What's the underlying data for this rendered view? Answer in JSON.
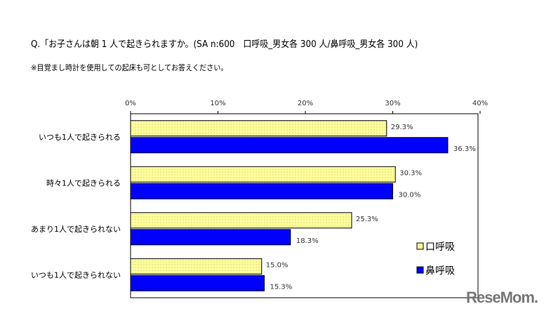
{
  "chart_data": {
    "type": "bar",
    "orientation": "horizontal",
    "title": "Q.「お子さんは朝 1 人で起きられますか。(SA n:600　口呼吸_男女各 300 人/鼻呼吸_男女各 300 人)",
    "subtitle": "※目覚まし時計を使用しての起床も可としてお答えください。",
    "categories": [
      "いつも1人で起きられる",
      "時々1人で起きられる",
      "あまり1人で起きられない",
      "いつも1人で起きられない"
    ],
    "series": [
      {
        "name": "口呼吸",
        "color": "#ffff99",
        "values": [
          29.3,
          30.3,
          25.3,
          15.0
        ],
        "labels": [
          "29.3%",
          "30.3%",
          "25.3%",
          "15.0%"
        ]
      },
      {
        "name": "鼻呼吸",
        "color": "#0000ff",
        "values": [
          36.3,
          30.0,
          18.3,
          15.3
        ],
        "labels": [
          "36.3%",
          "30.0%",
          "18.3%",
          "15.3%"
        ]
      }
    ],
    "xlim": [
      0,
      40
    ],
    "xticks": [
      "0%",
      "10%",
      "20%",
      "30%",
      "40%"
    ],
    "legend": "right"
  },
  "watermark": "ReseMom"
}
